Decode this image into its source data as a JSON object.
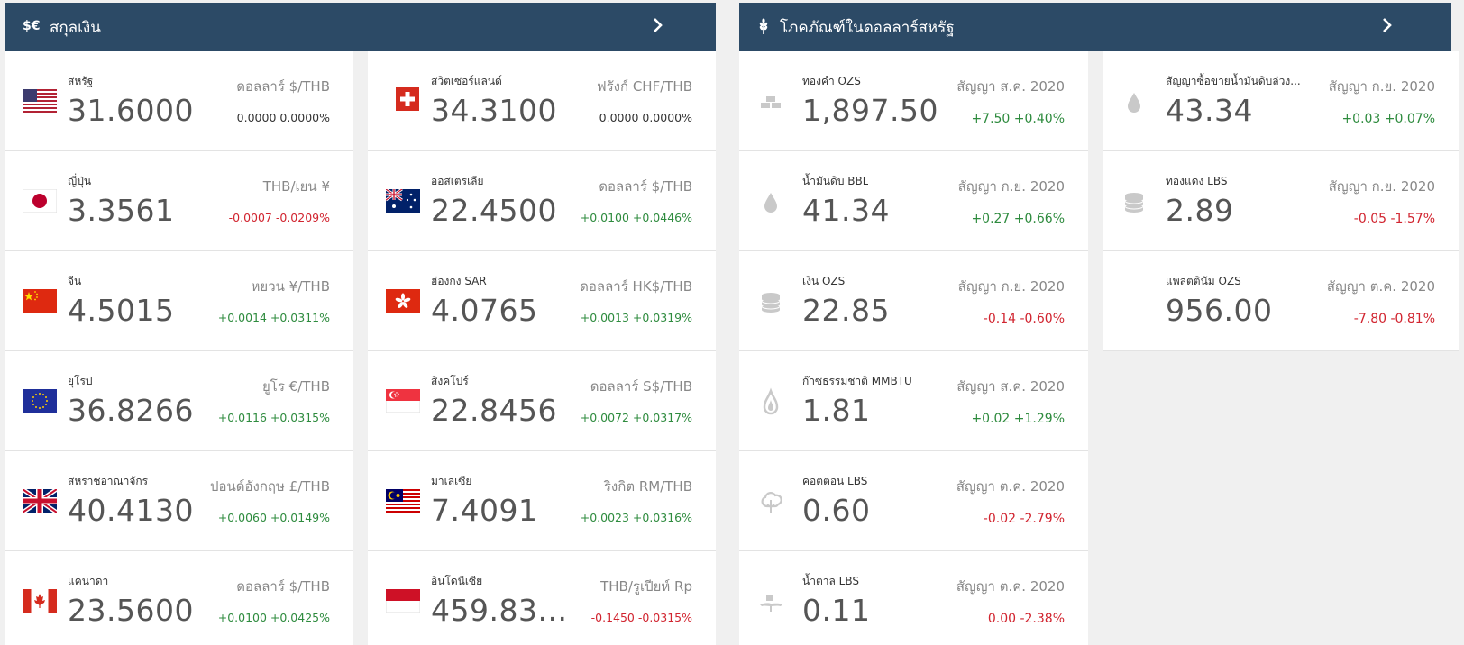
{
  "currency_panel": {
    "title": "สกุลเงิน",
    "icon_text": "$€",
    "icon": "currency-icon",
    "arrow_icon": "chevron-right-icon",
    "items": [
      {
        "name": "สหรัฐ",
        "value": "31.6000",
        "unit": "ดอลลาร์ $/THB",
        "change": "0.0000 0.0000%",
        "trend": "neutral",
        "flag": "us-flag-icon"
      },
      {
        "name": "สวิตเซอร์แลนด์",
        "value": "34.3100",
        "unit": "ฟรังก์ CHF/THB",
        "change": "0.0000 0.0000%",
        "trend": "neutral",
        "flag": "switzerland-flag-icon"
      },
      {
        "name": "ญี่ปุ่น",
        "value": "3.3561",
        "unit": "THB/เยน ¥",
        "change": "-0.0007 -0.0209%",
        "trend": "down",
        "flag": "japan-flag-icon"
      },
      {
        "name": "ออสเตรเลีย",
        "value": "22.4500",
        "unit": "ดอลลาร์ $/THB",
        "change": "+0.0100 +0.0446%",
        "trend": "up",
        "flag": "australia-flag-icon"
      },
      {
        "name": "จีน",
        "value": "4.5015",
        "unit": "หยวน ¥/THB",
        "change": "+0.0014 +0.0311%",
        "trend": "up",
        "flag": "china-flag-icon"
      },
      {
        "name": "ฮ่องกง SAR",
        "value": "4.0765",
        "unit": "ดอลลาร์ HK$/THB",
        "change": "+0.0013 +0.0319%",
        "trend": "up",
        "flag": "hongkong-flag-icon"
      },
      {
        "name": "ยุโรป",
        "value": "36.8266",
        "unit": "ยูโร €/THB",
        "change": "+0.0116 +0.0315%",
        "trend": "up",
        "flag": "eu-flag-icon"
      },
      {
        "name": "สิงคโปร์",
        "value": "22.8456",
        "unit": "ดอลลาร์ S$/THB",
        "change": "+0.0072 +0.0317%",
        "trend": "up",
        "flag": "singapore-flag-icon"
      },
      {
        "name": "สหราชอาณาจักร",
        "value": "40.4130",
        "unit": "ปอนด์อังกฤษ £/THB",
        "change": "+0.0060 +0.0149%",
        "trend": "up",
        "flag": "uk-flag-icon"
      },
      {
        "name": "มาเลเซีย",
        "value": "7.4091",
        "unit": "ริงกิต RM/THB",
        "change": "+0.0023 +0.0316%",
        "trend": "up",
        "flag": "malaysia-flag-icon"
      },
      {
        "name": "แคนาดา",
        "value": "23.5600",
        "unit": "ดอลลาร์ $/THB",
        "change": "+0.0100 +0.0425%",
        "trend": "up",
        "flag": "canada-flag-icon"
      },
      {
        "name": "อินโดนีเซีย",
        "value": "459.83...",
        "unit": "THB/รูเปียห์ Rp",
        "change": "-0.1450 -0.0315%",
        "trend": "down",
        "flag": "indonesia-flag-icon"
      }
    ]
  },
  "commodity_panel": {
    "title": "โภคภัณฑ์ในดอลลาร์สหรัฐ",
    "icon": "wheat-icon",
    "arrow_icon": "chevron-right-icon",
    "items": [
      {
        "name": "ทองคำ OZS",
        "value": "1,897.50",
        "unit": "สัญญา ส.ค. 2020",
        "change": "+7.50 +0.40%",
        "trend": "up",
        "icon": "gold-bars-icon"
      },
      {
        "name": "สัญญาซื้อขายน้ำมันดิบล่วง...",
        "value": "43.34",
        "unit": "สัญญา ก.ย. 2020",
        "change": "+0.03 +0.07%",
        "trend": "up",
        "icon": "oil-drop-icon"
      },
      {
        "name": "น้ำมันดิบ BBL",
        "value": "41.34",
        "unit": "สัญญา ก.ย. 2020",
        "change": "+0.27 +0.66%",
        "trend": "up",
        "icon": "oil-drop-icon"
      },
      {
        "name": "ทองแดง LBS",
        "value": "2.89",
        "unit": "สัญญา ก.ย. 2020",
        "change": "-0.05 -1.57%",
        "trend": "down",
        "icon": "coins-stack-icon"
      },
      {
        "name": "เงิน OZS",
        "value": "22.85",
        "unit": "สัญญา ก.ย. 2020",
        "change": "-0.14 -0.60%",
        "trend": "down",
        "icon": "coins-stack-icon"
      },
      {
        "name": "แพลตตินัม OZS",
        "value": "956.00",
        "unit": "สัญญา ต.ค. 2020",
        "change": "-7.80 -0.81%",
        "trend": "down",
        "icon": ""
      },
      {
        "name": "ก๊าซธรรมชาติ MMBTU",
        "value": "1.81",
        "unit": "สัญญา ส.ค. 2020",
        "change": "+0.02 +1.29%",
        "trend": "up",
        "icon": "flame-icon"
      },
      {
        "name": "คอตตอน LBS",
        "value": "0.60",
        "unit": "สัญญา ต.ค. 2020",
        "change": "-0.02 -2.79%",
        "trend": "down",
        "icon": "cotton-icon"
      },
      {
        "name": "น้ำตาล LBS",
        "value": "0.11",
        "unit": "สัญญา ต.ค. 2020",
        "change": "0.00 -2.38%",
        "trend": "down",
        "icon": "sugar-icon"
      }
    ]
  },
  "colors": {
    "header_bg": "#2c4a66",
    "up": "#2e8b3e",
    "down": "#d1242f",
    "neutral": "#333333"
  }
}
